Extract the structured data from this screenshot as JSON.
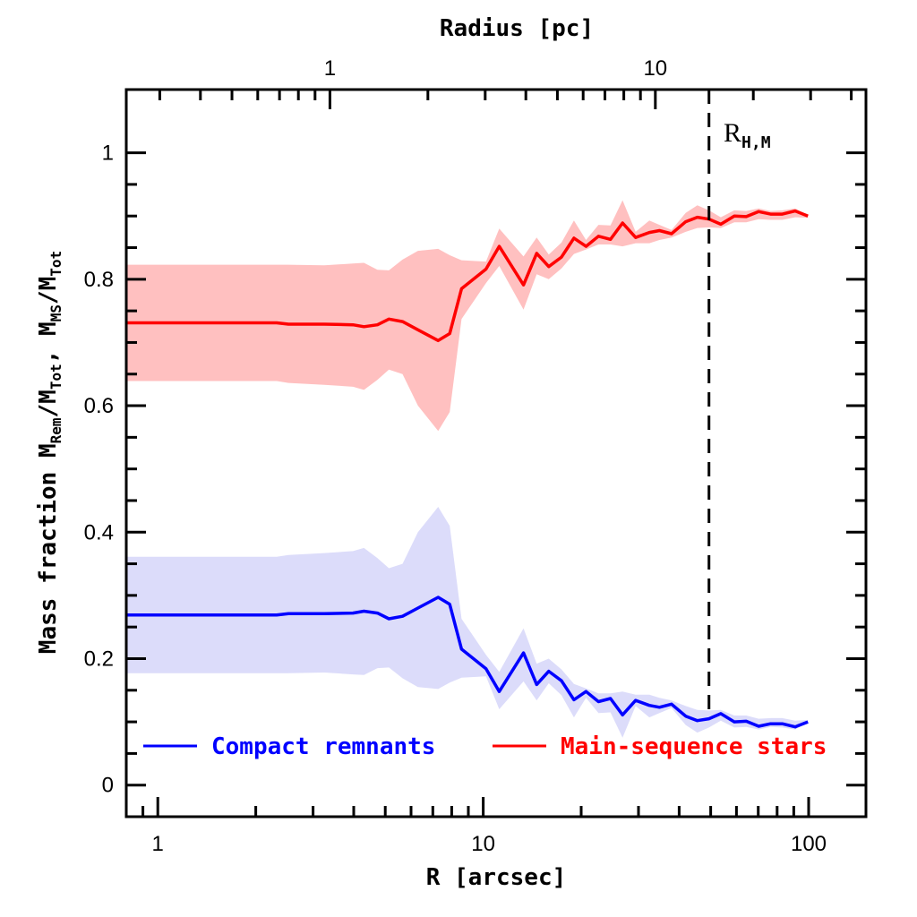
{
  "chart_data": {
    "type": "line",
    "title": "",
    "xlabel": "R [arcsec]",
    "top_xlabel": "Radius [pc]",
    "ylabel_parts": [
      {
        "t": "Mass fraction  M",
        "sub": false
      },
      {
        "t": "Rem",
        "sub": true
      },
      {
        "t": "/M",
        "sub": false
      },
      {
        "t": "Tot",
        "sub": true
      },
      {
        "t": ", M",
        "sub": false
      },
      {
        "t": "MS",
        "sub": true
      },
      {
        "t": "/M",
        "sub": false
      },
      {
        "t": "Tot",
        "sub": true
      }
    ],
    "xscale": "log",
    "xlim": [
      0.8,
      150
    ],
    "ylim": [
      -0.05,
      1.1
    ],
    "x_ticks": [
      "1",
      "10",
      "100"
    ],
    "y_ticks": [
      "0",
      "0.2",
      "0.4",
      "0.6",
      "0.8",
      "1"
    ],
    "top_axis": {
      "scale": "log",
      "ticks": [
        "1",
        "10"
      ],
      "arcsec_per_pc": 3.38
    },
    "grid": false,
    "legend_placement": "bottom",
    "annotation": {
      "main": "R",
      "sub": "H,M",
      "x": 49.4,
      "style": "dashed vertical line"
    },
    "x": [
      0.8,
      1,
      2.32,
      2.52,
      3.25,
      3.98,
      4.3,
      4.73,
      5.13,
      5.65,
      6.3,
      7.27,
      7.89,
      8.58,
      10.2,
      11.2,
      13.3,
      14.6,
      15.9,
      17.4,
      19.0,
      20.7,
      22.6,
      24.6,
      26.8,
      29.4,
      32.4,
      34.8,
      37.9,
      41.9,
      45.5,
      49.4,
      53.7,
      59.1,
      64.3,
      70.2,
      76.4,
      83.0,
      90.9,
      99.5
    ],
    "series": [
      {
        "name": "Compact remnants",
        "color": "#0000ff",
        "band_color": "#dcdcfa",
        "values": [
          0.269,
          0.269,
          0.269,
          0.271,
          0.271,
          0.272,
          0.275,
          0.272,
          0.263,
          0.267,
          0.28,
          0.297,
          0.286,
          0.215,
          0.184,
          0.148,
          0.209,
          0.159,
          0.18,
          0.165,
          0.135,
          0.148,
          0.132,
          0.137,
          0.111,
          0.134,
          0.126,
          0.123,
          0.128,
          0.109,
          0.102,
          0.105,
          0.113,
          0.1,
          0.101,
          0.093,
          0.097,
          0.097,
          0.092,
          0.1
        ],
        "upper": [
          0.361,
          0.361,
          0.361,
          0.364,
          0.367,
          0.37,
          0.375,
          0.359,
          0.343,
          0.35,
          0.4,
          0.44,
          0.41,
          0.263,
          0.206,
          0.179,
          0.248,
          0.192,
          0.2,
          0.183,
          0.16,
          0.153,
          0.145,
          0.145,
          0.148,
          0.143,
          0.143,
          0.138,
          0.134,
          0.125,
          0.119,
          0.118,
          0.119,
          0.11,
          0.11,
          0.105,
          0.106,
          0.106,
          0.102,
          0.103
        ],
        "lower": [
          0.177,
          0.177,
          0.177,
          0.177,
          0.178,
          0.175,
          0.174,
          0.185,
          0.186,
          0.169,
          0.155,
          0.152,
          0.162,
          0.17,
          0.172,
          0.12,
          0.164,
          0.134,
          0.161,
          0.142,
          0.107,
          0.138,
          0.114,
          0.115,
          0.075,
          0.125,
          0.107,
          0.114,
          0.122,
          0.095,
          0.083,
          0.091,
          0.102,
          0.091,
          0.092,
          0.088,
          0.092,
          0.091,
          0.088,
          0.099
        ]
      },
      {
        "name": "Main-sequence stars",
        "color": "#ff0000",
        "band_color": "#ffc0c0",
        "values": [
          0.731,
          0.731,
          0.731,
          0.729,
          0.729,
          0.728,
          0.725,
          0.728,
          0.737,
          0.733,
          0.72,
          0.703,
          0.714,
          0.785,
          0.816,
          0.852,
          0.791,
          0.841,
          0.82,
          0.835,
          0.865,
          0.852,
          0.868,
          0.863,
          0.889,
          0.866,
          0.874,
          0.877,
          0.872,
          0.891,
          0.898,
          0.895,
          0.887,
          0.9,
          0.899,
          0.907,
          0.903,
          0.903,
          0.908,
          0.9
        ],
        "upper": [
          0.823,
          0.823,
          0.823,
          0.823,
          0.822,
          0.825,
          0.826,
          0.815,
          0.814,
          0.831,
          0.845,
          0.848,
          0.838,
          0.83,
          0.828,
          0.88,
          0.836,
          0.866,
          0.839,
          0.858,
          0.893,
          0.862,
          0.886,
          0.885,
          0.925,
          0.875,
          0.893,
          0.886,
          0.878,
          0.905,
          0.917,
          0.909,
          0.898,
          0.909,
          0.908,
          0.912,
          0.908,
          0.909,
          0.912,
          0.901
        ],
        "lower": [
          0.639,
          0.639,
          0.639,
          0.636,
          0.633,
          0.63,
          0.625,
          0.641,
          0.657,
          0.65,
          0.6,
          0.56,
          0.59,
          0.737,
          0.794,
          0.821,
          0.752,
          0.808,
          0.8,
          0.817,
          0.84,
          0.847,
          0.855,
          0.855,
          0.852,
          0.857,
          0.857,
          0.862,
          0.866,
          0.875,
          0.881,
          0.882,
          0.881,
          0.89,
          0.89,
          0.895,
          0.894,
          0.894,
          0.898,
          0.897
        ]
      }
    ]
  }
}
